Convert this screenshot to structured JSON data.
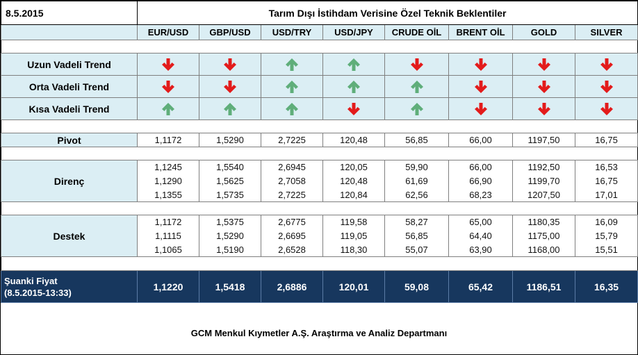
{
  "header": {
    "date": "8.5.2015",
    "title": "Tarım Dışı İstihdam Verisine Özel Teknik Beklentiler"
  },
  "instruments": [
    "EUR/USD",
    "GBP/USD",
    "USD/TRY",
    "USD/JPY",
    "CRUDE OİL",
    "BRENT OİL",
    "GOLD",
    "SILVER"
  ],
  "trends": [
    {
      "label": "Uzun Vadeli Trend",
      "directions": [
        "down",
        "down",
        "up",
        "up",
        "down",
        "down",
        "down",
        "down"
      ]
    },
    {
      "label": "Orta Vadeli Trend",
      "directions": [
        "down",
        "down",
        "up",
        "up",
        "up",
        "down",
        "down",
        "down"
      ]
    },
    {
      "label": "Kısa Vadeli Trend",
      "directions": [
        "up",
        "up",
        "up",
        "down",
        "up",
        "down",
        "down",
        "down"
      ]
    }
  ],
  "pivot": {
    "label": "Pivot",
    "values": [
      "1,1172",
      "1,5290",
      "2,7225",
      "120,48",
      "56,85",
      "66,00",
      "1197,50",
      "16,75"
    ]
  },
  "resistance": {
    "label": "Direnç",
    "rows": [
      [
        "1,1245",
        "1,5540",
        "2,6945",
        "120,05",
        "59,90",
        "66,00",
        "1192,50",
        "16,53"
      ],
      [
        "1,1290",
        "1,5625",
        "2,7058",
        "120,48",
        "61,69",
        "66,90",
        "1199,70",
        "16,75"
      ],
      [
        "1,1355",
        "1,5735",
        "2,7225",
        "120,84",
        "62,56",
        "68,23",
        "1207,50",
        "17,01"
      ]
    ]
  },
  "support": {
    "label": "Destek",
    "rows": [
      [
        "1,1172",
        "1,5375",
        "2,6775",
        "119,58",
        "58,27",
        "65,00",
        "1180,35",
        "16,09"
      ],
      [
        "1,1115",
        "1,5290",
        "2,6695",
        "119,05",
        "56,85",
        "64,40",
        "1175,00",
        "15,79"
      ],
      [
        "1,1065",
        "1,5190",
        "2,6528",
        "118,30",
        "55,07",
        "63,90",
        "1168,00",
        "15,51"
      ]
    ]
  },
  "current": {
    "label_line1": "Şuanki Fiyat",
    "label_line2": "(8.5.2015-13:33)",
    "values": [
      "1,1220",
      "1,5418",
      "2,6886",
      "120,01",
      "59,08",
      "65,42",
      "1186,51",
      "16,35"
    ]
  },
  "footer": "GCM Menkul Kıymetler A.Ş. Araştırma ve Analiz Departmanı",
  "colors": {
    "up": "#5fae7a",
    "down": "#e31b1b",
    "header_bg": "#dbeef4",
    "price_bg": "#17375e"
  }
}
